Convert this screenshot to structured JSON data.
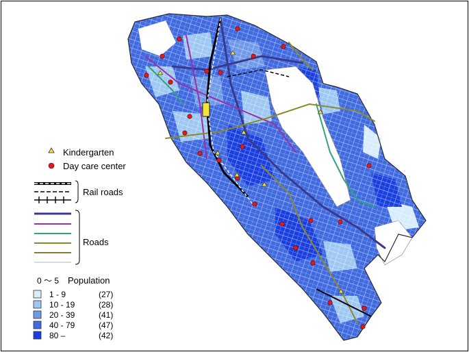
{
  "legend": {
    "facilities": [
      {
        "label": "Kindergarten",
        "symbol": "yellow-triangle",
        "color": "#f2e43a"
      },
      {
        "label": "Day care center",
        "symbol": "red-circle",
        "color": "#e3191b"
      }
    ],
    "rail_label": "Rail roads",
    "roads_label": "Roads",
    "road_colors": [
      "#3a3a8c",
      "#9b2fa6",
      "#2fa37a",
      "#8a8a2a",
      "#8a7a3a",
      "#cfcfcf"
    ],
    "population": {
      "heading_range": "0 ～ 5",
      "heading_label": "Population",
      "classes": [
        {
          "range": "1  -   9",
          "count": "(27)",
          "color": "#d9ecfb"
        },
        {
          "range": "10  -  19",
          "count": "(28)",
          "color": "#9ec8f2"
        },
        {
          "range": "20  -  39",
          "count": "(41)",
          "color": "#6f9ae8"
        },
        {
          "range": "40  -  79",
          "count": "(47)",
          "color": "#3f6ae0"
        },
        {
          "range": "80  –",
          "count": "(42)",
          "color": "#1a3fe0"
        }
      ]
    }
  }
}
